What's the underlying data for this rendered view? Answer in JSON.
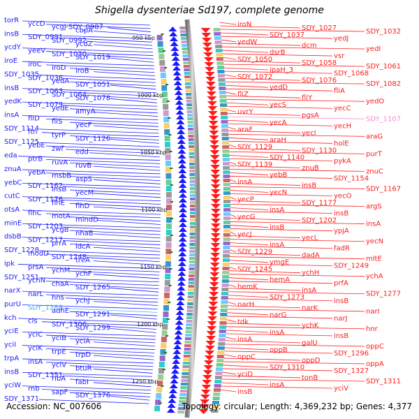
{
  "title": "Shigella dysenteriae Sd197, complete genome",
  "footer": {
    "accession": "Accession: NC_007606",
    "topology": "Topology: circular; Length: 4,369,232 bp; Genes: 4,377"
  },
  "colors": {
    "plus_strand": "#1a1aff",
    "minus_strand": "#ff1a1a",
    "highlight_plus": "#44aaff",
    "highlight_minus": "#ff88cc",
    "backbone": "#999999",
    "tick_marker": "#227722"
  },
  "bp_ticks": [
    "950 kbp",
    "1000 kbp",
    "1050 kbp",
    "1100 kbp",
    "1150 kbp",
    "1200 kbp",
    "1250 kbp"
  ],
  "left_labels": [
    "torR",
    "yccD",
    "ycgJ-SDY_0987",
    "cbpA",
    "insB",
    "SDY_0991",
    "SDY_0992",
    "ycdZ",
    "ycdY",
    "yeeV",
    "SDY_1020",
    "SDY_1019",
    "iroE",
    "iroC",
    "iroD",
    "iroB",
    "SDY_1035",
    "SDY_1036",
    "yedA",
    "SDY_1051",
    "insB",
    "SDY_1063",
    "SDY_1064",
    "SDY_1078",
    "yedK",
    "SDY_1079",
    "yedE",
    "amyA",
    "insA",
    "fliD",
    "fliS",
    "yecF",
    "SDY_1114",
    "ftn",
    "tyrP",
    "SDY_1126",
    "SDY_1125",
    "yebE",
    "zwf",
    "edd",
    "eda",
    "ptrB",
    "ruvA",
    "ruvB",
    "znuA",
    "yebA",
    "msbB",
    "aspS",
    "yebC",
    "SDY_1162",
    "insB",
    "yecM",
    "cutC",
    "SDY_1176",
    "flhE",
    "flhD",
    "otsA",
    "flhC",
    "motA",
    "mindD",
    "minE",
    "SDY_1203",
    "ycgB",
    "nhaB",
    "dsbB",
    "SDY_1217",
    "prrA",
    "ldcA",
    "SDY_1228",
    "modD",
    "SDY_1248",
    "treA",
    "ipk",
    "prsA",
    "ychM",
    "ychF",
    "SDY_1251",
    "ychN",
    "chaA",
    "SDY_1265",
    "narX",
    "narL",
    "hns",
    "ychJ",
    "purU",
    "SDY_1283",
    "adhE",
    "SDY_1291",
    "kch",
    "cls",
    "SDY_1306",
    "SDY_1299",
    "yciE",
    "yciC",
    "yciB",
    "yciA",
    "yciI",
    "yciK",
    "trpE",
    "trpD",
    "trpA",
    "insA",
    "yciV",
    "btuR",
    "insB",
    "SDY_1351",
    "ribA",
    "fabI",
    "yciW",
    "rnb",
    "sapF",
    "SDY_1376",
    "SDY_1371"
  ],
  "right_labels": [
    "iroN",
    "SDY_1027",
    "SDY_1032",
    "SDY_1037",
    "yedJ",
    "yedW",
    "dcm",
    "yedI",
    "dsrB",
    "vsr",
    "SDY_1050",
    "SDY_1058",
    "SDY_1061",
    "ipaH_3",
    "SDY_1068",
    "SDY_1072",
    "SDY_1076",
    "SDY_1082",
    "yedD",
    "fliA",
    "fliZ",
    "fliY",
    "yedO",
    "yecS",
    "yecC",
    "uvrY",
    "pgsA",
    "SDY_1107",
    "yecA",
    "yecH",
    "araF",
    "yecI",
    "araG",
    "araH",
    "holE",
    "SDY_1129",
    "SDY_1130",
    "purT",
    "SDY_1140",
    "pykA",
    "SDY_1139",
    "znuB",
    "znuC",
    "yebB",
    "SDY_1154",
    "insA",
    "insB",
    "SDY_1167",
    "yecN",
    "yecO",
    "yecP",
    "SDY_1177",
    "argS",
    "insA",
    "insB",
    "yecG",
    "SDY_1202",
    "insA",
    "insB",
    "ypjA",
    "yecJ",
    "yecL",
    "yecN",
    "insA",
    "fadR",
    "SDY_1229",
    "dadA",
    "mltE",
    "ymgE",
    "SDY_1249",
    "SDY_1245",
    "ychH",
    "ychA",
    "hemA",
    "prfA",
    "hemK",
    "insA",
    "SDY_1277",
    "SDY_1273",
    "insB",
    "narH",
    "narK",
    "narI",
    "narG",
    "narJ",
    "tdk",
    "ychK",
    "hnr",
    "insA",
    "insB",
    "insA",
    "galU",
    "oppC",
    "oppB",
    "SDY_1296",
    "oppC",
    "oppD",
    "oppA",
    "SDY_1310",
    "SDY_1327",
    "yciD",
    "tonB",
    "SDY_1311",
    "insA",
    "yciV",
    "insB"
  ]
}
